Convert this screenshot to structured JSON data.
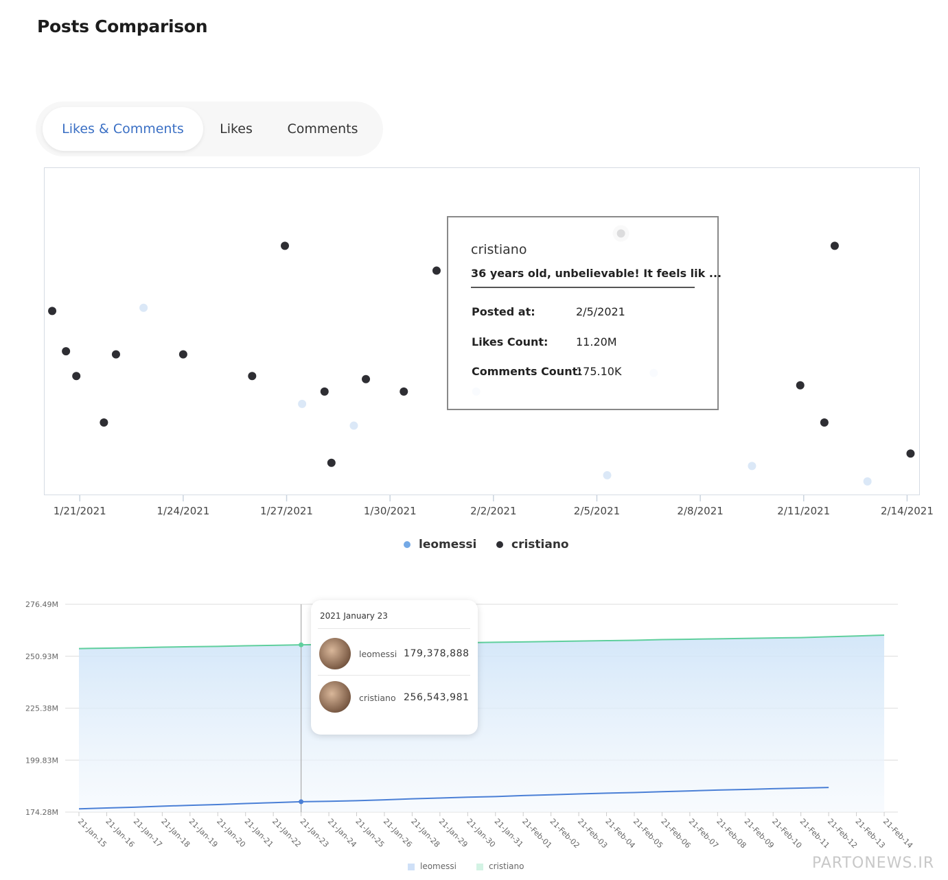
{
  "page": {
    "title": "Posts Comparison"
  },
  "tabs": [
    {
      "label": "Likes & Comments",
      "active": true
    },
    {
      "label": "Likes",
      "active": false
    },
    {
      "label": "Comments",
      "active": false
    }
  ],
  "colors": {
    "leomessi": "#74a9e6",
    "cristiano": "#2e2e33",
    "tab_active": "#3a6fc4",
    "line_messi": "#4a7fd6",
    "line_cristiano": "#5fcf9d"
  },
  "scatter_tooltip": {
    "user": "cristiano",
    "caption": "36 years old, unbelievable! It feels lik ...",
    "rows": [
      {
        "label": "Posted at:",
        "value": "2/5/2021"
      },
      {
        "label": "Likes Count:",
        "value": "11.20M"
      },
      {
        "label": "Comments Count:",
        "value": "175.10K"
      }
    ]
  },
  "line_tooltip": {
    "date": "2021 January 23",
    "entries": [
      {
        "name": "leomessi",
        "value": "179,378,888"
      },
      {
        "name": "cristiano",
        "value": "256,543,981"
      }
    ]
  },
  "watermark": "PARTONEWS.IR",
  "chart_data": [
    {
      "type": "scatter",
      "xlabels": [
        "1/21/2021",
        "1/24/2021",
        "1/27/2021",
        "1/30/2021",
        "2/2/2021",
        "2/5/2021",
        "2/8/2021",
        "2/11/2021",
        "2/14/2021"
      ],
      "x_range_days": [
        20.0,
        45.35
      ],
      "y_range": [
        0,
        100
      ],
      "legend": [
        "leomessi",
        "cristiano"
      ],
      "series": [
        {
          "name": "cristiano",
          "points": [
            {
              "x": 20.2,
              "y": 59
            },
            {
              "x": 20.6,
              "y": 46
            },
            {
              "x": 20.9,
              "y": 38
            },
            {
              "x": 21.7,
              "y": 23
            },
            {
              "x": 22.05,
              "y": 45
            },
            {
              "x": 24.0,
              "y": 45
            },
            {
              "x": 26.0,
              "y": 38
            },
            {
              "x": 26.95,
              "y": 80
            },
            {
              "x": 28.1,
              "y": 33
            },
            {
              "x": 28.3,
              "y": 10
            },
            {
              "x": 29.3,
              "y": 37
            },
            {
              "x": 31.35,
              "y": 72
            },
            {
              "x": 30.4,
              "y": 33
            },
            {
              "x": 36.7,
              "y": 84
            },
            {
              "x": 42.9,
              "y": 80
            },
            {
              "x": 41.9,
              "y": 35
            },
            {
              "x": 42.6,
              "y": 23
            },
            {
              "x": 45.1,
              "y": 13
            }
          ]
        },
        {
          "name": "leomessi",
          "points": [
            {
              "x": 22.85,
              "y": 60
            },
            {
              "x": 27.45,
              "y": 29
            },
            {
              "x": 28.95,
              "y": 22
            },
            {
              "x": 32.5,
              "y": 33
            },
            {
              "x": 36.3,
              "y": 6
            },
            {
              "x": 37.65,
              "y": 39
            },
            {
              "x": 40.5,
              "y": 9
            },
            {
              "x": 43.85,
              "y": 4
            }
          ]
        }
      ]
    },
    {
      "type": "area",
      "categories": [
        "21-Jan-15",
        "21-Jan-16",
        "21-Jan-17",
        "21-Jan-18",
        "21-Jan-19",
        "21-Jan-20",
        "21-Jan-21",
        "21-Jan-22",
        "21-Jan-23",
        "21-Jan-24",
        "21-Jan-25",
        "21-Jan-26",
        "21-Jan-28",
        "21-Jan-29",
        "21-Jan-30",
        "21-Jan-31",
        "21-Feb-01",
        "21-Feb-02",
        "21-Feb-03",
        "21-Feb-04",
        "21-Feb-05",
        "21-Feb-06",
        "21-Feb-07",
        "21-Feb-08",
        "21-Feb-09",
        "21-Feb-10",
        "21-Feb-11",
        "21-Feb-12",
        "21-Feb-13",
        "21-Feb-14"
      ],
      "ytick_labels": [
        "276.49M",
        "250.93M",
        "225.38M",
        "199.83M",
        "174.28M"
      ],
      "ylim": [
        174.28,
        276.49
      ],
      "legend": [
        "leomessi",
        "cristiano"
      ],
      "series": [
        {
          "name": "leomessi",
          "values": [
            175.9,
            176.3,
            176.7,
            177.2,
            177.6,
            178.0,
            178.5,
            178.9,
            179.38,
            179.6,
            179.9,
            180.3,
            180.8,
            181.2,
            181.6,
            181.9,
            182.4,
            182.8,
            183.2,
            183.6,
            183.9,
            184.3,
            184.7,
            185.1,
            185.4,
            185.8,
            186.1,
            186.4,
            null,
            null
          ]
        },
        {
          "name": "cristiano",
          "values": [
            254.7,
            254.9,
            255.1,
            255.4,
            255.6,
            255.8,
            256.1,
            256.3,
            256.54,
            256.7,
            256.8,
            257.0,
            257.2,
            257.4,
            257.6,
            257.8,
            258.0,
            258.2,
            258.4,
            258.6,
            258.8,
            259.1,
            259.3,
            259.5,
            259.7,
            259.9,
            260.1,
            260.5,
            260.9,
            261.3
          ]
        }
      ]
    }
  ]
}
